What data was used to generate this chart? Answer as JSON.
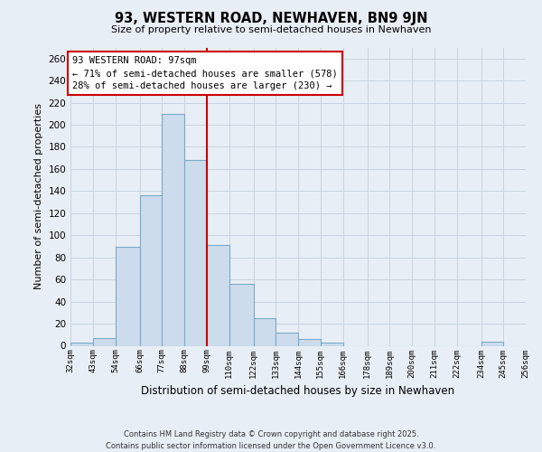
{
  "title": "93, WESTERN ROAD, NEWHAVEN, BN9 9JN",
  "subtitle": "Size of property relative to semi-detached houses in Newhaven",
  "xlabel": "Distribution of semi-detached houses by size in Newhaven",
  "ylabel": "Number of semi-detached properties",
  "bin_labels": [
    "32sqm",
    "43sqm",
    "54sqm",
    "66sqm",
    "77sqm",
    "88sqm",
    "99sqm",
    "110sqm",
    "122sqm",
    "133sqm",
    "144sqm",
    "155sqm",
    "166sqm",
    "178sqm",
    "189sqm",
    "200sqm",
    "211sqm",
    "222sqm",
    "234sqm",
    "245sqm",
    "256sqm"
  ],
  "bin_edges": [
    32,
    43,
    54,
    66,
    77,
    88,
    99,
    110,
    122,
    133,
    144,
    155,
    166,
    178,
    189,
    200,
    211,
    222,
    234,
    245,
    256
  ],
  "values": [
    3,
    7,
    90,
    136,
    210,
    168,
    91,
    56,
    25,
    12,
    6,
    3,
    0,
    0,
    0,
    0,
    0,
    0,
    4,
    0,
    0
  ],
  "bar_color": "#ccdcec",
  "bar_edge_color": "#7aaac8",
  "vline_x": 99,
  "vline_color": "#cc0000",
  "annotation_line1": "93 WESTERN ROAD: 97sqm",
  "annotation_line2": "← 71% of semi-detached houses are smaller (578)",
  "annotation_line3": "28% of semi-detached houses are larger (230) →",
  "annotation_box_color": "#cc0000",
  "annotation_fill": "#ffffff",
  "ylim": [
    0,
    270
  ],
  "yticks": [
    0,
    20,
    40,
    60,
    80,
    100,
    120,
    140,
    160,
    180,
    200,
    220,
    240,
    260
  ],
  "grid_color": "#c8d4e0",
  "background_color": "#e8eef5",
  "footer_line1": "Contains HM Land Registry data © Crown copyright and database right 2025.",
  "footer_line2": "Contains public sector information licensed under the Open Government Licence v3.0."
}
